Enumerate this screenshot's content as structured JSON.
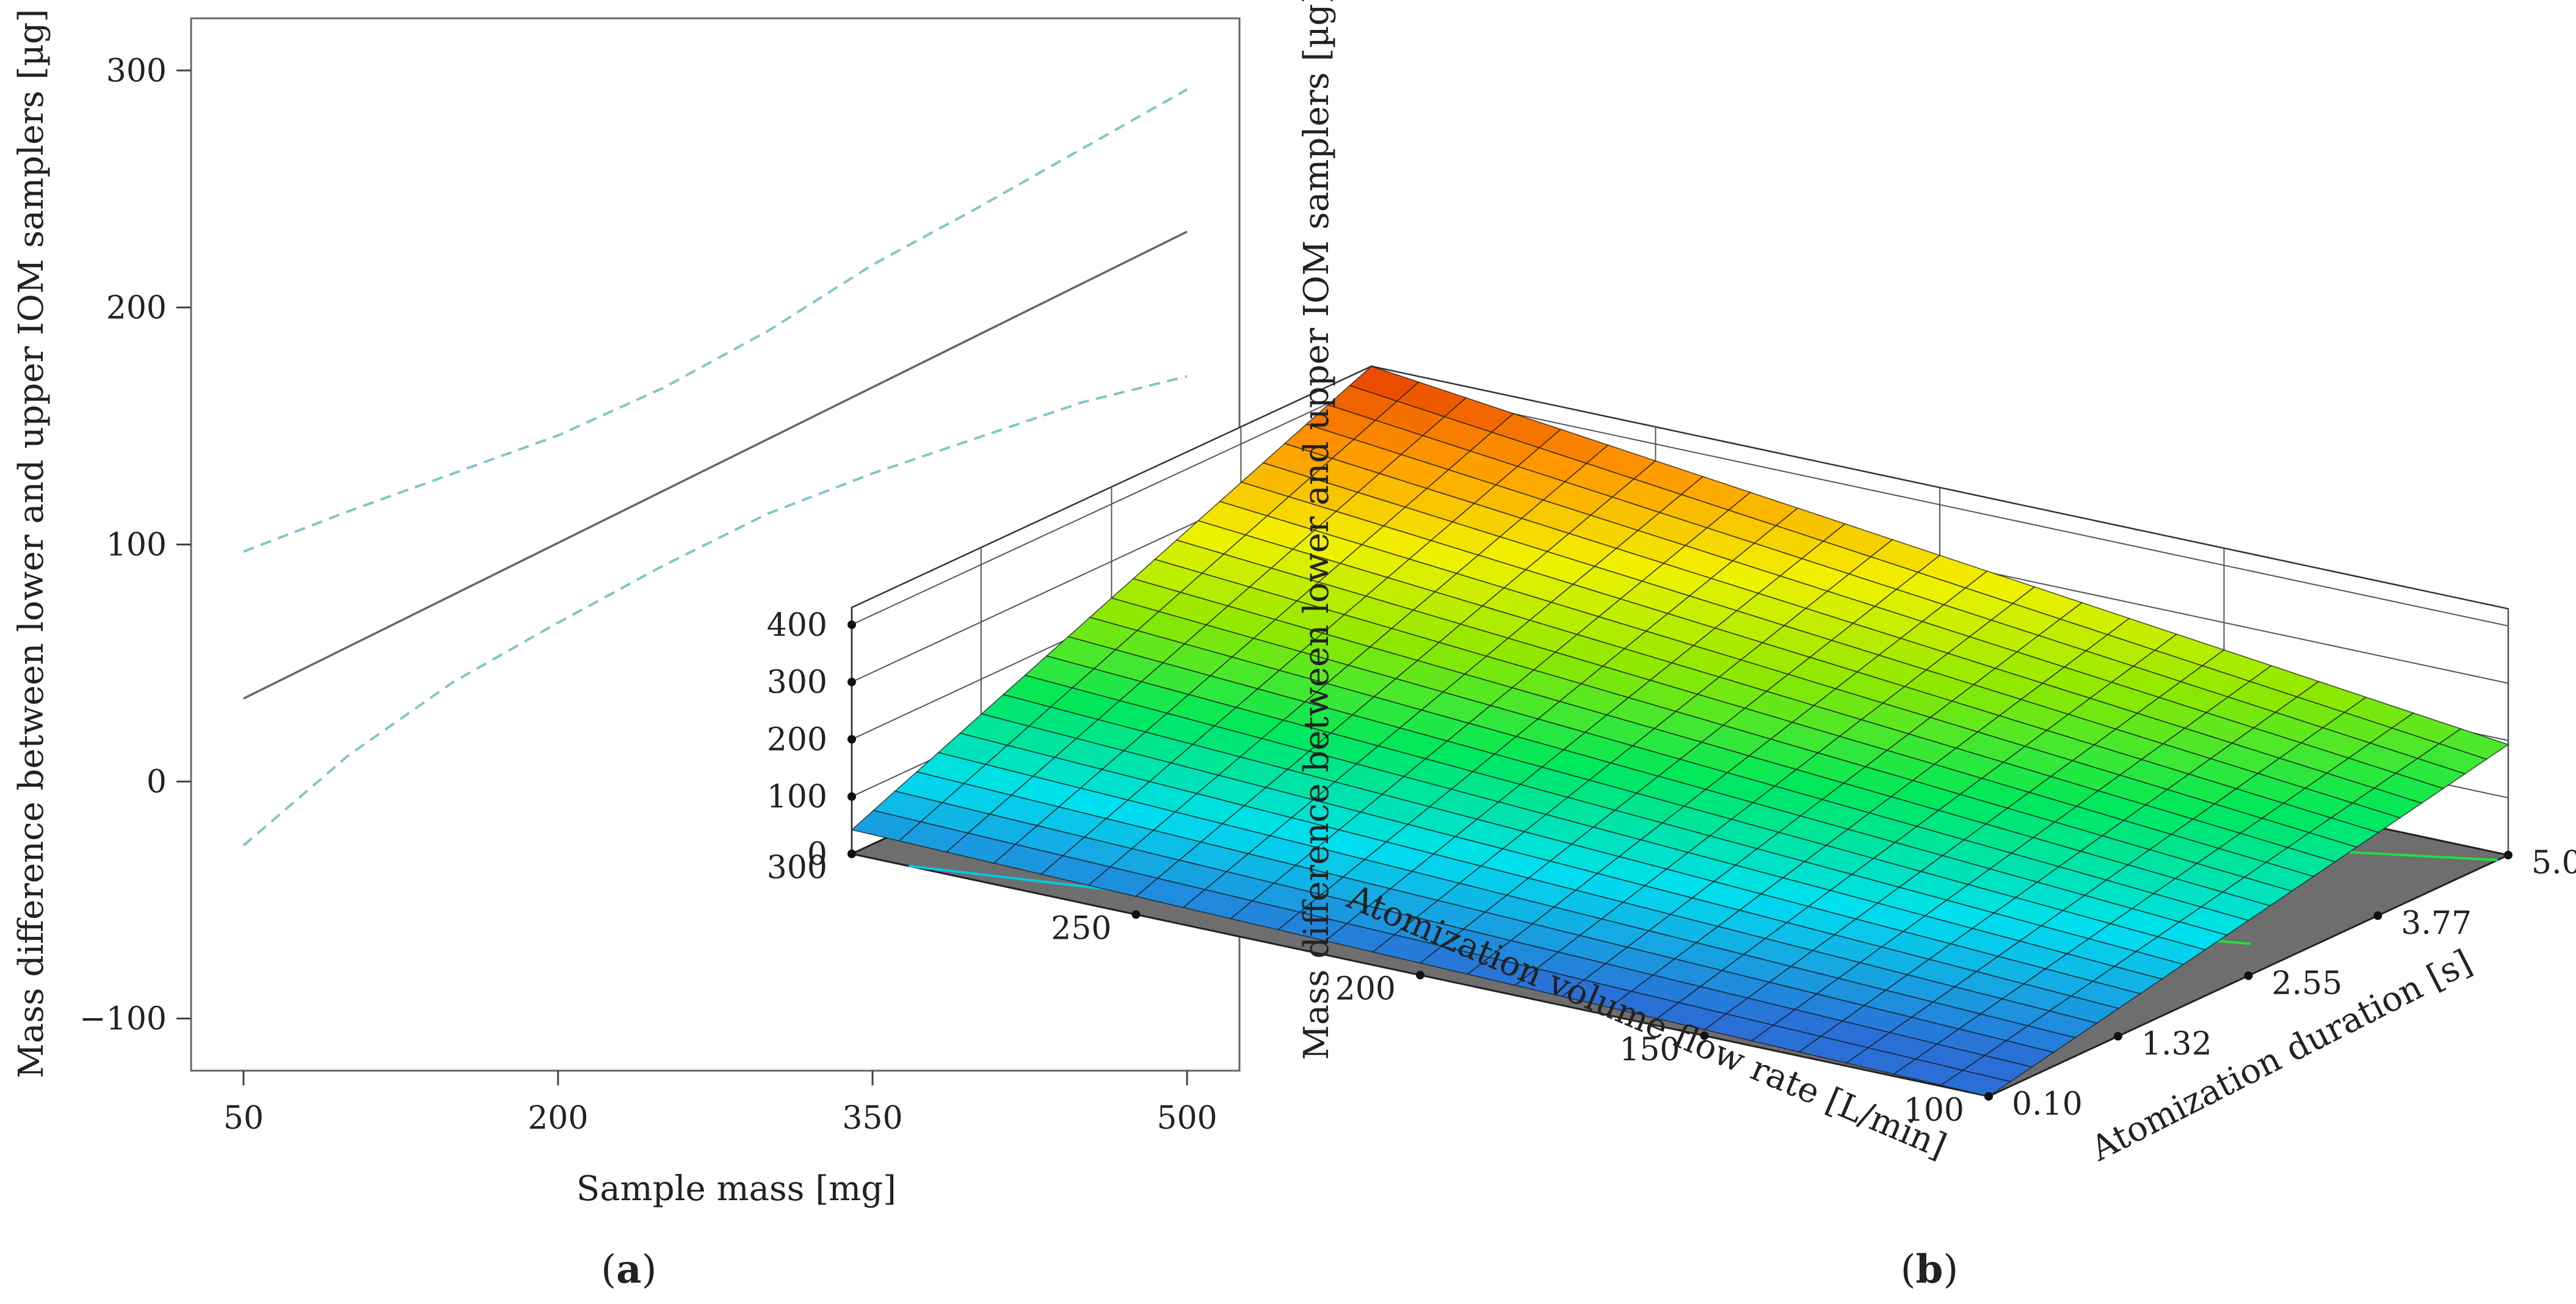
{
  "panels": {
    "a": {
      "label_open": "(",
      "label_letter": "a",
      "label_close": ")"
    },
    "b": {
      "label_open": "(",
      "label_letter": "b",
      "label_close": ")"
    }
  },
  "chart_data": [
    {
      "type": "line",
      "xlabel": "Sample mass [mg]",
      "ylabel": "Mass difference between lower and upper IOM samplers [µg]",
      "xlim": [
        25,
        525
      ],
      "ylim": [
        -122,
        322
      ],
      "x_ticks": [
        50,
        200,
        350,
        500
      ],
      "y_ticks": [
        -100,
        0,
        100,
        200,
        300
      ],
      "x_tick_labels": [
        "50",
        "200",
        "350",
        "500"
      ],
      "y_tick_labels": [
        "−100",
        "0",
        "100",
        "200",
        "300"
      ],
      "grid": false,
      "series": [
        {
          "style": "solid",
          "color": "#666666",
          "x": [
            50,
            500
          ],
          "y": [
            35,
            232
          ]
        },
        {
          "style": "dashed",
          "color": "#7ec6c9",
          "x": [
            50,
            100,
            150,
            200,
            250,
            300,
            350,
            400,
            450,
            500
          ],
          "y": [
            97,
            114,
            130,
            146,
            166,
            190,
            218,
            242,
            267,
            292
          ]
        },
        {
          "style": "dashed",
          "color": "#7ec6c9",
          "x": [
            50,
            100,
            150,
            200,
            250,
            300,
            350,
            400,
            450,
            500
          ],
          "y": [
            -27,
            11,
            42,
            67,
            91,
            113,
            130,
            145,
            160,
            171
          ]
        }
      ]
    },
    {
      "type": "surface3d",
      "zlabel": "Mass difference between lower and upper IOM samplers [µg]",
      "xlabel": "Atomization volume flow rate [L/min]",
      "ylabel": "Atomization duration [s]",
      "xlim": [
        100,
        300
      ],
      "ylim": [
        0.1,
        5.0
      ],
      "zlim": [
        0,
        400
      ],
      "x_ticks": [
        100,
        150,
        200,
        250,
        300
      ],
      "y_ticks": [
        0.1,
        1.32,
        2.55,
        3.77,
        5.0
      ],
      "z_ticks": [
        0,
        100,
        200,
        300,
        400
      ],
      "x_tick_labels": [
        "100",
        "150",
        "200",
        "250",
        "300"
      ],
      "y_tick_labels": [
        "0.10",
        "1.32",
        "2.55",
        "3.77",
        "5.00"
      ],
      "z_tick_labels": [
        "0",
        "100",
        "200",
        "300",
        "400"
      ],
      "corner_values": [
        {
          "flow": 300,
          "duration": 0.1,
          "mass": 42
        },
        {
          "flow": 100,
          "duration": 0.1,
          "mass": 0
        },
        {
          "flow": 100,
          "duration": 5.0,
          "mass": 193
        },
        {
          "flow": 300,
          "duration": 5.0,
          "mass": 430
        }
      ],
      "colormap": [
        "#2a6fd6",
        "#00e0f0",
        "#00e85a",
        "#8ee800",
        "#f2f200",
        "#ff9a00",
        "#e63a00"
      ],
      "floor_color": "#6e6e6e",
      "contour_colors": [
        "#00c8e6",
        "#22dd44",
        "#22dd44",
        "#ffd000"
      ]
    }
  ]
}
